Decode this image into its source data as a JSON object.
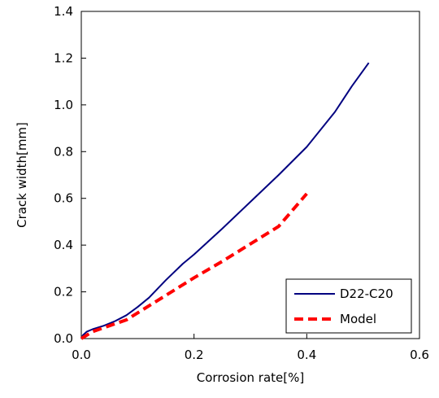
{
  "chart_data": {
    "type": "line",
    "title": "",
    "xlabel": "Corrosion rate[%]",
    "ylabel": "Crack width[mm]",
    "xlim": [
      0,
      0.6
    ],
    "ylim": [
      0,
      1.4
    ],
    "xticks": [
      "0.0",
      "0.2",
      "0.4",
      "0.6"
    ],
    "yticks": [
      "0.0",
      "0.2",
      "0.4",
      "0.6",
      "0.8",
      "1.0",
      "1.2",
      "1.4"
    ],
    "grid": false,
    "legend_position": "bottom-right",
    "series": [
      {
        "name": "D22-C20",
        "color": "#000080",
        "style": "solid",
        "x": [
          0.0,
          0.003,
          0.01,
          0.02,
          0.04,
          0.06,
          0.08,
          0.1,
          0.12,
          0.15,
          0.18,
          0.2,
          0.25,
          0.3,
          0.35,
          0.4,
          0.45,
          0.48,
          0.51
        ],
        "y": [
          0.0,
          0.015,
          0.03,
          0.04,
          0.055,
          0.075,
          0.1,
          0.135,
          0.175,
          0.25,
          0.32,
          0.36,
          0.47,
          0.585,
          0.7,
          0.82,
          0.97,
          1.08,
          1.18
        ]
      },
      {
        "name": "Model",
        "color": "#ff0000",
        "style": "dashed",
        "x": [
          0.0,
          0.02,
          0.05,
          0.08,
          0.1,
          0.15,
          0.2,
          0.25,
          0.3,
          0.35,
          0.4
        ],
        "y": [
          0.0,
          0.03,
          0.055,
          0.08,
          0.11,
          0.185,
          0.26,
          0.33,
          0.405,
          0.48,
          0.62
        ]
      }
    ]
  }
}
